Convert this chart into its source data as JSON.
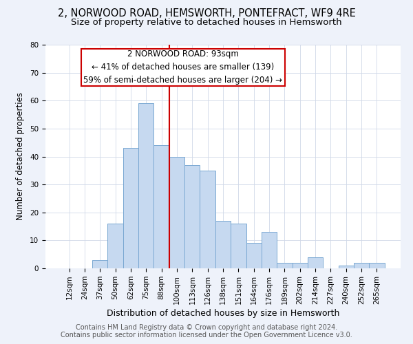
{
  "title": "2, NORWOOD ROAD, HEMSWORTH, PONTEFRACT, WF9 4RE",
  "subtitle": "Size of property relative to detached houses in Hemsworth",
  "xlabel": "Distribution of detached houses by size in Hemsworth",
  "ylabel": "Number of detached properties",
  "bin_labels": [
    "12sqm",
    "24sqm",
    "37sqm",
    "50sqm",
    "62sqm",
    "75sqm",
    "88sqm",
    "100sqm",
    "113sqm",
    "126sqm",
    "138sqm",
    "151sqm",
    "164sqm",
    "176sqm",
    "189sqm",
    "202sqm",
    "214sqm",
    "227sqm",
    "240sqm",
    "252sqm",
    "265sqm"
  ],
  "bar_values": [
    0,
    0,
    3,
    16,
    43,
    59,
    44,
    40,
    37,
    35,
    17,
    16,
    9,
    13,
    2,
    2,
    4,
    0,
    1,
    2,
    2
  ],
  "bar_color": "#c6d9f0",
  "bar_edge_color": "#7aa8d2",
  "vline_color": "#cc0000",
  "ylim": [
    0,
    80
  ],
  "yticks": [
    0,
    10,
    20,
    30,
    40,
    50,
    60,
    70,
    80
  ],
  "annotation_box_text": "2 NORWOOD ROAD: 93sqm\n← 41% of detached houses are smaller (139)\n59% of semi-detached houses are larger (204) →",
  "footer_line1": "Contains HM Land Registry data © Crown copyright and database right 2024.",
  "footer_line2": "Contains public sector information licensed under the Open Government Licence v3.0.",
  "title_fontsize": 10.5,
  "subtitle_fontsize": 9.5,
  "xlabel_fontsize": 9,
  "ylabel_fontsize": 8.5,
  "tick_fontsize": 7.5,
  "footer_fontsize": 7,
  "annotation_fontsize": 8.5,
  "background_color": "#eef2fa",
  "plot_background_color": "#ffffff",
  "grid_color": "#d0d8e8"
}
